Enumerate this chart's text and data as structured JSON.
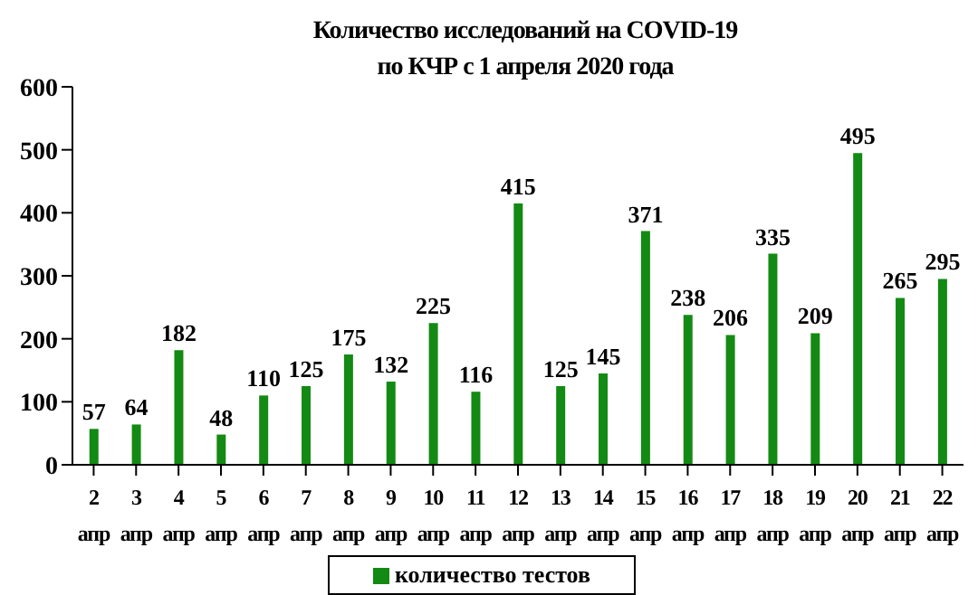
{
  "chart_data": {
    "type": "bar",
    "title": "Количество  исследований на COVID-19 по КЧР с 1 апреля 2020 года",
    "categories": [
      "2 апр",
      "3 апр",
      "4 апр",
      "5 апр",
      "6 апр",
      "7 апр",
      "8 апр",
      "9 апр",
      "10 апр",
      "11 апр",
      "12 апр",
      "13 апр",
      "14 апр",
      "15 апр",
      "16 апр",
      "17 апр",
      "18 апр",
      "19 апр",
      "20 апр",
      "21 апр",
      "22 апр"
    ],
    "series": [
      {
        "name": "количество тестов",
        "color": "#138a13",
        "values": [
          57,
          64,
          182,
          48,
          110,
          125,
          175,
          132,
          225,
          116,
          415,
          125,
          145,
          371,
          238,
          206,
          335,
          209,
          495,
          265,
          295
        ]
      }
    ],
    "ylim": [
      0,
      600
    ],
    "yticks": [
      0,
      100,
      200,
      300,
      400,
      500,
      600
    ],
    "legend": "bottom",
    "data_labels": true
  }
}
